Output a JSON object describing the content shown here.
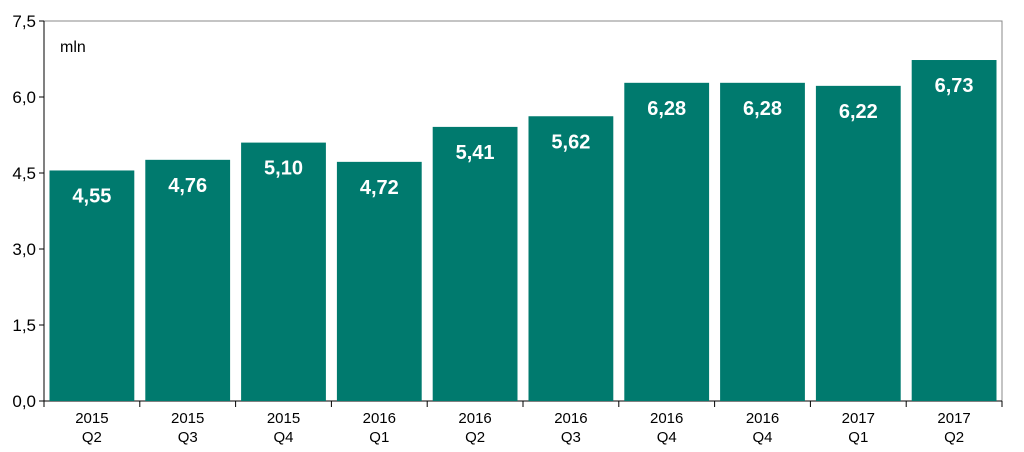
{
  "chart_data": {
    "type": "bar",
    "unit_label": "mln",
    "categories": [
      [
        "2015",
        "Q2"
      ],
      [
        "2015",
        "Q3"
      ],
      [
        "2015",
        "Q4"
      ],
      [
        "2016",
        "Q1"
      ],
      [
        "2016",
        "Q2"
      ],
      [
        "2016",
        "Q3"
      ],
      [
        "2016",
        "Q4"
      ],
      [
        "2016",
        "Q4"
      ],
      [
        "2017",
        "Q1"
      ],
      [
        "2017",
        "Q2"
      ]
    ],
    "values": [
      4.55,
      4.76,
      5.1,
      4.72,
      5.41,
      5.62,
      6.28,
      6.28,
      6.22,
      6.73
    ],
    "data_labels": [
      "4,55",
      "4,76",
      "5,10",
      "4,72",
      "5,41",
      "5,62",
      "6,28",
      "6,28",
      "6,22",
      "6,73"
    ],
    "yticks": [
      0,
      1.5,
      3.0,
      4.5,
      6.0,
      7.5
    ],
    "ytick_labels": [
      "0,0",
      "1,5",
      "3,0",
      "4,5",
      "6,0",
      "7,5"
    ],
    "ylim": [
      0,
      7.5
    ],
    "grid": false,
    "bar_color": "#007A6E",
    "label_color": "#FFFFFF"
  }
}
